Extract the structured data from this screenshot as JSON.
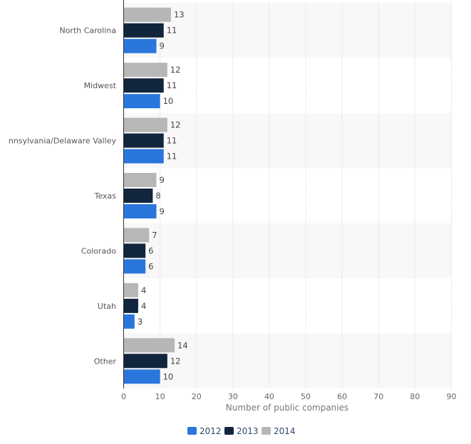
{
  "chart_data": {
    "type": "bar",
    "orientation": "horizontal",
    "title": "",
    "xlabel": "Number of public companies",
    "ylabel": "",
    "xlim": [
      0,
      90
    ],
    "xticks": [
      0,
      10,
      20,
      30,
      40,
      50,
      60,
      70,
      80,
      90
    ],
    "categories": [
      "North Carolina",
      "Midwest",
      "nnsylvania/Delaware Valley",
      "Texas",
      "Colorado",
      "Utah",
      "Other"
    ],
    "series": [
      {
        "name": "2014",
        "color": "#b7b7b7",
        "values": [
          13,
          12,
          12,
          9,
          7,
          4,
          14
        ]
      },
      {
        "name": "2013",
        "color": "#11253d",
        "values": [
          11,
          11,
          11,
          8,
          6,
          4,
          12
        ]
      },
      {
        "name": "2012",
        "color": "#2a76dd",
        "values": [
          9,
          10,
          11,
          9,
          6,
          3,
          10
        ]
      }
    ],
    "legend": {
      "position": "bottom-center",
      "order": [
        "2012",
        "2013",
        "2014"
      ]
    },
    "grid": true
  }
}
